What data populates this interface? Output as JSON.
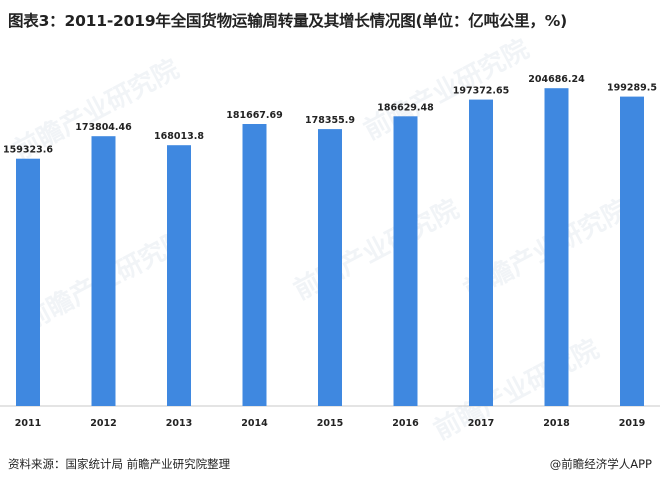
{
  "chart_data": {
    "type": "bar",
    "title": "图表3：2011-2019年全国货物运输周转量及其增长情况图(单位：亿吨公里，%)",
    "categories": [
      "2011",
      "2012",
      "2013",
      "2014",
      "2015",
      "2016",
      "2017",
      "2018",
      "2019"
    ],
    "values": [
      159323.6,
      173804.46,
      168013.8,
      181667.69,
      178355.9,
      186629.48,
      197372.65,
      204686.24,
      199289.5
    ],
    "value_labels": [
      "159323.6",
      "173804.46",
      "168013.8",
      "181667.69",
      "178355.9",
      "186629.48",
      "197372.65",
      "204686.24",
      "199289.5"
    ],
    "ylim": [
      0,
      210000
    ],
    "bar_color": "#3f88e0",
    "xlabel": "",
    "ylabel": ""
  },
  "footer": {
    "source": "资料来源：国家统计局 前瞻产业研究院整理",
    "brand": "@前瞻经济学人APP"
  },
  "watermark_text": "前瞻产业研究院"
}
